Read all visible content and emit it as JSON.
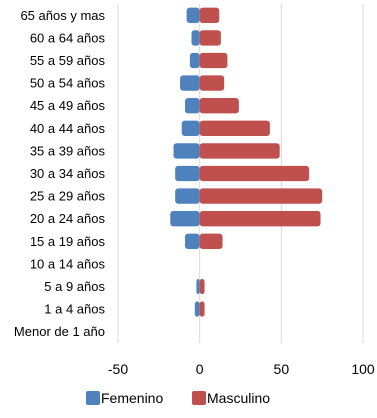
{
  "chart_data": {
    "type": "bar",
    "orientation": "horizontal",
    "categories": [
      "65 años y mas",
      "60 a 64 años",
      "55 a 59 años",
      "50 a 54 años",
      "45 a 49 años",
      "40 a 44 años",
      "35 a 39 años",
      "30 a 34 años",
      "25 a 29 años",
      "20 a 24 años",
      "15 a 19 años",
      "10 a 14 años",
      "5 a 9 años",
      "1 a 4 años",
      "Menor de 1 año"
    ],
    "series": [
      {
        "name": "Femenino",
        "color": "#4f81bd",
        "values": [
          -8,
          -5,
          -6,
          -12,
          -9,
          -11,
          -16,
          -15,
          -15,
          -18,
          -9,
          0,
          -2,
          -3,
          0
        ]
      },
      {
        "name": "Masculino",
        "color": "#c0504d",
        "values": [
          12,
          13,
          17,
          15,
          24,
          43,
          49,
          67,
          75,
          74,
          14,
          0,
          3,
          3,
          0
        ]
      }
    ],
    "xlim": [
      -50,
      100
    ],
    "xticks": [
      -50,
      0,
      50,
      100
    ],
    "xtick_labels": [
      "-50",
      "0",
      "50",
      "100"
    ],
    "gridlines": "vertical",
    "legend_position": "bottom",
    "title": "",
    "xlabel": "",
    "ylabel": ""
  }
}
